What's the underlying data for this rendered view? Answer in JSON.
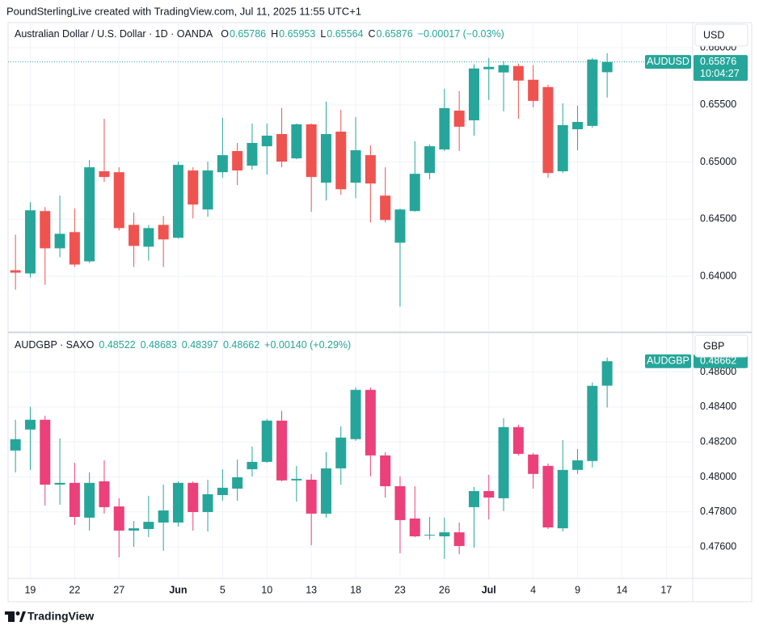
{
  "header": "PoundSterlingLive created with TradingView.com, Jul 11, 2025 11:55 UTC+1",
  "footer": "TradingView",
  "time_axis": {
    "categories": [
      null,
      "19",
      null,
      null,
      "22",
      null,
      null,
      "27",
      null,
      null,
      null,
      "Jun",
      null,
      null,
      "5",
      null,
      null,
      "10",
      null,
      null,
      "13",
      null,
      null,
      "18",
      null,
      null,
      "23",
      null,
      null,
      "26",
      null,
      null,
      "Jul",
      null,
      null,
      "4",
      null,
      null,
      "9",
      null,
      null,
      "14",
      null,
      null,
      "17"
    ]
  },
  "chart_data": [
    {
      "type": "candlestick",
      "title": "Australian Dollar / U.S. Dollar · 1D · OANDA",
      "ohlc_letters": [
        "O",
        "H",
        "L",
        "C"
      ],
      "change": "−0.00017 (−0.03%)",
      "currency": "USD",
      "symbol": "AUDUSD",
      "countdown": "10:04:27",
      "price_line": true,
      "up_color": "#26a69a",
      "down_color": "#ef5350",
      "grid": true,
      "ylim": [
        0.6352,
        0.6622
      ],
      "yticks": [
        {
          "value": 0.64,
          "label": "0.64000"
        },
        {
          "value": 0.645,
          "label": "0.64500"
        },
        {
          "value": 0.65,
          "label": "0.65000"
        },
        {
          "value": 0.655,
          "label": "0.65500"
        },
        {
          "value": 0.66,
          "label": "0.66000"
        }
      ],
      "open": [
        0.64053,
        0.64025,
        0.64571,
        0.64245,
        0.64387,
        0.64131,
        0.64919,
        0.64911,
        0.6445,
        0.64259,
        0.6445,
        0.64337,
        0.64926,
        0.64585,
        0.64911,
        0.65096,
        0.64968,
        0.65138,
        0.65245,
        0.65032,
        0.6533,
        0.64819,
        0.65266,
        0.64819,
        0.6506,
        0.64706,
        0.64294,
        0.64571,
        0.64904,
        0.6511,
        0.6545,
        0.65365,
        0.65812,
        0.65784,
        0.6584,
        0.6572,
        0.65656,
        0.64919,
        0.65287,
        0.65316,
        0.65786
      ],
      "high": [
        0.64365,
        0.64649,
        0.64606,
        0.64706,
        0.64592,
        0.65018,
        0.65379,
        0.64954,
        0.64557,
        0.6445,
        0.64528,
        0.65004,
        0.64954,
        0.65004,
        0.65387,
        0.65167,
        0.65337,
        0.65337,
        0.65472,
        0.65337,
        0.65337,
        0.65528,
        0.65457,
        0.65394,
        0.65145,
        0.64954,
        0.64592,
        0.65181,
        0.65153,
        0.65642,
        0.65621,
        0.65855,
        0.65911,
        0.65883,
        0.65862,
        0.65848,
        0.65677,
        0.65514,
        0.65493,
        0.65911,
        0.65953
      ],
      "low": [
        0.63883,
        0.63989,
        0.63926,
        0.64167,
        0.64082,
        0.64117,
        0.64826,
        0.64401,
        0.64082,
        0.64138,
        0.64082,
        0.6433,
        0.64507,
        0.64521,
        0.64862,
        0.64798,
        0.64933,
        0.6489,
        0.64954,
        0.65025,
        0.64564,
        0.64663,
        0.64713,
        0.64684,
        0.64472,
        0.64472,
        0.63734,
        0.64564,
        0.64848,
        0.65096,
        0.65096,
        0.65231,
        0.65543,
        0.65443,
        0.65379,
        0.65479,
        0.64862,
        0.64904,
        0.65103,
        0.65301,
        0.65564
      ],
      "close": [
        0.64032,
        0.64578,
        0.64245,
        0.64372,
        0.64103,
        0.64954,
        0.64869,
        0.64422,
        0.64266,
        0.64422,
        0.64323,
        0.64975,
        0.64628,
        0.64926,
        0.6506,
        0.64926,
        0.65167,
        0.65231,
        0.65004,
        0.6533,
        0.64869,
        0.65245,
        0.64762,
        0.65103,
        0.64812,
        0.64493,
        0.64585,
        0.64897,
        0.65138,
        0.65472,
        0.65309,
        0.65819,
        0.65833,
        0.65848,
        0.65713,
        0.65535,
        0.64904,
        0.65323,
        0.65351,
        0.65897,
        0.65876
      ]
    },
    {
      "type": "candlestick",
      "title": "AUDGBP · SAXO",
      "change": "+0.00140 (+0.29%)",
      "currency": "GBP",
      "symbol": "AUDGBP",
      "up_color": "#26a69a",
      "down_color": "#ec407a",
      "grid": true,
      "ylim": [
        0.4742,
        0.4882
      ],
      "yticks": [
        {
          "value": 0.476,
          "label": "0.47600"
        },
        {
          "value": 0.478,
          "label": "0.47800"
        },
        {
          "value": 0.48,
          "label": "0.48000"
        },
        {
          "value": 0.482,
          "label": "0.48200"
        },
        {
          "value": 0.484,
          "label": "0.48400"
        },
        {
          "value": 0.486,
          "label": "0.48600"
        }
      ],
      "open": [
        0.48151,
        0.48271,
        0.48327,
        0.47956,
        0.47966,
        0.47767,
        0.47975,
        0.47831,
        0.47693,
        0.47702,
        0.47739,
        0.47739,
        0.47966,
        0.47799,
        0.47896,
        0.47933,
        0.48044,
        0.48086,
        0.48322,
        0.4798,
        0.47984,
        0.4779,
        0.48049,
        0.48216,
        0.48498,
        0.48123,
        0.47947,
        0.47762,
        0.47665,
        0.4766,
        0.47683,
        0.47827,
        0.47919,
        0.47878,
        0.48285,
        0.48128,
        0.48063,
        0.47706,
        0.4804,
        0.48091,
        0.48522
      ],
      "high": [
        0.48327,
        0.48401,
        0.4835,
        0.4822,
        0.48081,
        0.48026,
        0.48095,
        0.47878,
        0.47748,
        0.47892,
        0.47956,
        0.47975,
        0.47975,
        0.47984,
        0.48044,
        0.481,
        0.48174,
        0.48331,
        0.48378,
        0.48063,
        0.48017,
        0.48142,
        0.4829,
        0.48512,
        0.48512,
        0.48142,
        0.48003,
        0.47947,
        0.47771,
        0.47767,
        0.47739,
        0.47943,
        0.48012,
        0.48336,
        0.48299,
        0.48137,
        0.48077,
        0.48211,
        0.4816,
        0.4854,
        0.48683
      ],
      "low": [
        0.48026,
        0.4804,
        0.47836,
        0.47841,
        0.47725,
        0.47693,
        0.4779,
        0.4754,
        0.476,
        0.47656,
        0.47577,
        0.47716,
        0.47693,
        0.47688,
        0.47864,
        0.47864,
        0.48003,
        0.48081,
        0.47975,
        0.47859,
        0.47609,
        0.47767,
        0.47956,
        0.48206,
        0.48003,
        0.47882,
        0.47563,
        0.47656,
        0.47642,
        0.47531,
        0.47558,
        0.47595,
        0.47757,
        0.47804,
        0.48123,
        0.47933,
        0.47702,
        0.47688,
        0.48017,
        0.48054,
        0.48397
      ],
      "close": [
        0.48216,
        0.48327,
        0.47956,
        0.47966,
        0.47771,
        0.47966,
        0.47827,
        0.47693,
        0.47706,
        0.47743,
        0.47808,
        0.47966,
        0.47799,
        0.47901,
        0.47938,
        0.47998,
        0.48086,
        0.48322,
        0.4798,
        0.47989,
        0.4779,
        0.48049,
        0.48225,
        0.48498,
        0.48123,
        0.47947,
        0.47753,
        0.4766,
        0.47669,
        0.47683,
        0.47605,
        0.47919,
        0.47882,
        0.48285,
        0.48132,
        0.48017,
        0.47711,
        0.4804,
        0.48095,
        0.48521,
        0.48662
      ]
    }
  ]
}
